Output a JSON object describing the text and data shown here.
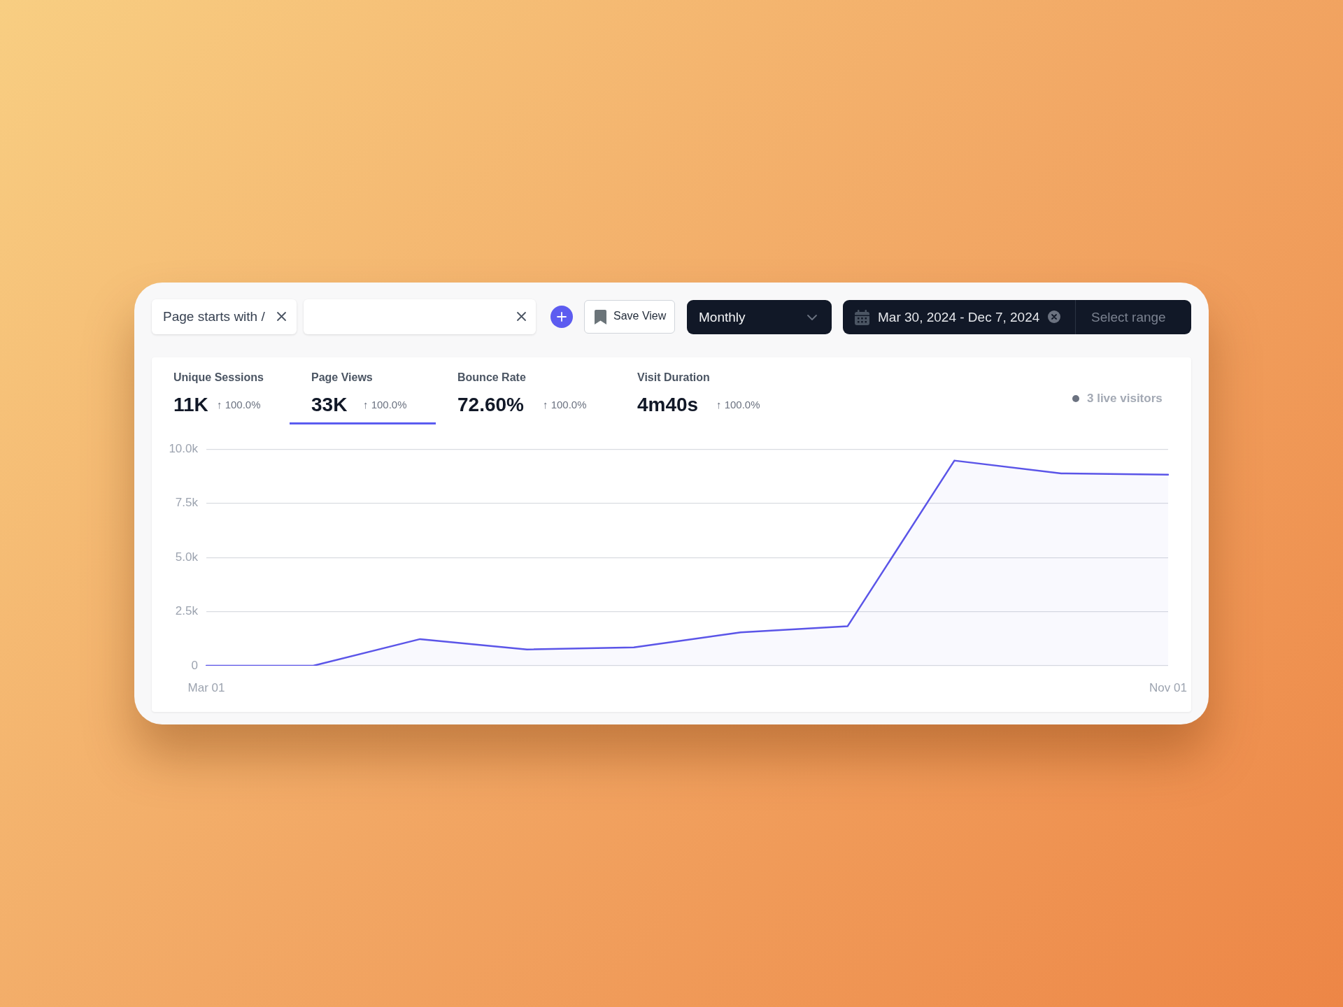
{
  "chart_data": {
    "type": "area",
    "categories": [
      "Mar 01",
      null,
      null,
      null,
      null,
      null,
      null,
      null,
      null,
      "Nov 01"
    ],
    "values": [
      0,
      0,
      1230,
      750,
      850,
      1540,
      1820,
      9470,
      8880,
      8820
    ],
    "color": "#5b55e8",
    "ylim": [
      0,
      10000
    ],
    "yticks": [
      0,
      {
        "value": 2500,
        "label": "2.5k"
      },
      {
        "value": 5000,
        "label": "5.0k"
      },
      {
        "value": 7500,
        "label": "7.5k"
      },
      {
        "value": 10000,
        "label": "10.0k"
      }
    ],
    "grid": "y",
    "marker": "none",
    "annotations": [
      "Page starts with /",
      "Save View",
      "Monthly",
      "Mar 30, 2024 - Dec 7, 2024",
      "Select range",
      "Unique Sessions",
      "11K",
      "↑ 100.0%",
      "Page Views",
      "33K",
      "↑ 100.0%",
      "Bounce Rate",
      "72.60%",
      "↑ 100.0%",
      "Visit Duration",
      "4m40s",
      "↑ 100.0%",
      "3 live visitors"
    ]
  }
}
